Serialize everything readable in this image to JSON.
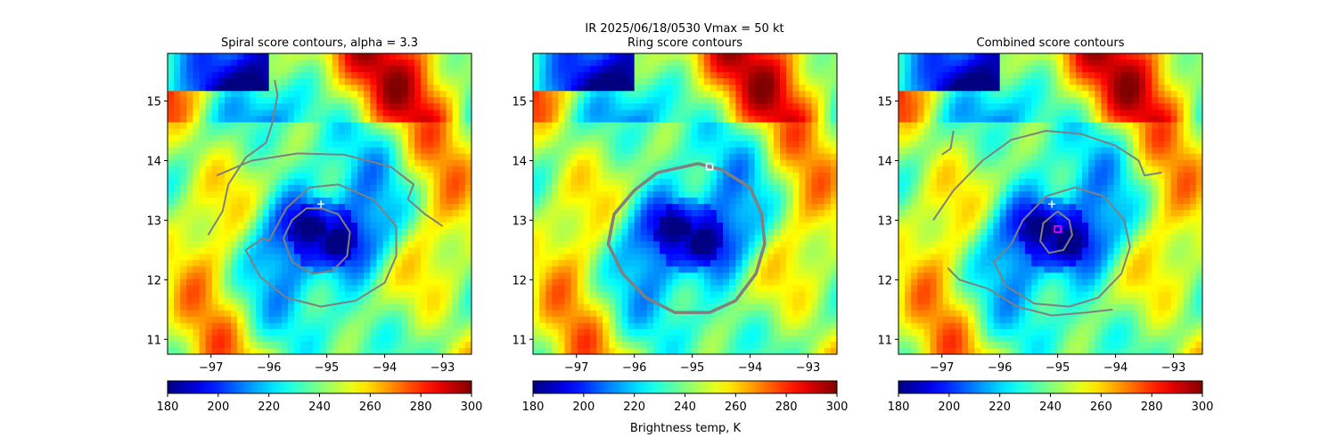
{
  "figure": {
    "suptitle": "IR  2025/06/18/0530    Vmax = 50 kt",
    "colorbar_label": "Brightness temp, K"
  },
  "chart_data": [
    {
      "type": "heatmap",
      "title": "Spiral score contours, alpha =  3.3",
      "xlim": [
        -97.75,
        -92.5
      ],
      "ylim": [
        10.75,
        15.8
      ],
      "xticks": [
        -97,
        -96,
        -95,
        -94,
        -93
      ],
      "yticks": [
        11,
        12,
        13,
        14,
        15
      ],
      "colorbar": {
        "colormap": "jet",
        "range": [
          180,
          300
        ],
        "ticks": [
          180,
          200,
          220,
          240,
          260,
          280,
          300
        ]
      },
      "contour_color": "#808080",
      "contours": [
        {
          "level": "outer",
          "points": [
            [
              -96.9,
              13.75
            ],
            [
              -96.3,
              14.0
            ],
            [
              -95.5,
              14.12
            ],
            [
              -94.7,
              14.1
            ],
            [
              -93.9,
              13.9
            ],
            [
              -93.5,
              13.6
            ],
            [
              -93.6,
              13.35
            ],
            [
              -93.3,
              13.1
            ],
            [
              -93.0,
              12.9
            ]
          ]
        },
        {
          "level": "outer-arm",
          "points": [
            [
              -97.05,
              12.75
            ],
            [
              -96.8,
              13.15
            ],
            [
              -96.7,
              13.6
            ],
            [
              -96.4,
              14.05
            ],
            [
              -96.05,
              14.3
            ],
            [
              -95.95,
              14.6
            ],
            [
              -95.85,
              15.1
            ],
            [
              -95.9,
              15.35
            ]
          ]
        },
        {
          "level": "middle",
          "points": [
            [
              -96.0,
              12.65
            ],
            [
              -95.7,
              13.2
            ],
            [
              -95.3,
              13.55
            ],
            [
              -94.8,
              13.6
            ],
            [
              -94.2,
              13.35
            ],
            [
              -93.8,
              12.9
            ],
            [
              -93.8,
              12.4
            ],
            [
              -94.0,
              11.95
            ],
            [
              -94.5,
              11.65
            ],
            [
              -95.1,
              11.55
            ],
            [
              -95.7,
              11.7
            ],
            [
              -96.15,
              12.05
            ],
            [
              -96.4,
              12.5
            ],
            [
              -96.1,
              12.7
            ],
            [
              -96.0,
              12.65
            ]
          ]
        },
        {
          "level": "inner",
          "points": [
            [
              -95.1,
              13.2
            ],
            [
              -94.8,
              13.1
            ],
            [
              -94.6,
              12.8
            ],
            [
              -94.65,
              12.4
            ],
            [
              -94.9,
              12.15
            ],
            [
              -95.25,
              12.1
            ],
            [
              -95.6,
              12.3
            ],
            [
              -95.75,
              12.7
            ],
            [
              -95.6,
              13.0
            ],
            [
              -95.35,
              13.2
            ],
            [
              -95.1,
              13.2
            ]
          ]
        }
      ],
      "markers": [
        {
          "kind": "plus",
          "lon": -95.1,
          "lat": 13.27,
          "color": "#ffffff"
        }
      ]
    },
    {
      "type": "heatmap",
      "title": "Ring score contours",
      "xlim": [
        -97.75,
        -92.5
      ],
      "ylim": [
        10.75,
        15.8
      ],
      "xticks": [
        -97,
        -96,
        -95,
        -94,
        -93
      ],
      "yticks": [
        11,
        12,
        13,
        14,
        15
      ],
      "colorbar": {
        "colormap": "jet",
        "range": [
          180,
          300
        ],
        "ticks": [
          180,
          200,
          220,
          240,
          260,
          280,
          300
        ]
      },
      "contour_color": "#808080",
      "contours": [
        {
          "level": "ring-region",
          "points": [
            [
              -95.6,
              13.8
            ],
            [
              -94.9,
              13.95
            ],
            [
              -94.5,
              13.85
            ],
            [
              -94.0,
              13.55
            ],
            [
              -93.8,
              13.1
            ],
            [
              -93.75,
              12.6
            ],
            [
              -93.9,
              12.1
            ],
            [
              -94.25,
              11.65
            ],
            [
              -94.7,
              11.45
            ],
            [
              -95.3,
              11.45
            ],
            [
              -95.8,
              11.7
            ],
            [
              -96.2,
              12.1
            ],
            [
              -96.45,
              12.6
            ],
            [
              -96.35,
              13.1
            ],
            [
              -96.0,
              13.5
            ],
            [
              -95.6,
              13.8
            ]
          ]
        }
      ],
      "markers": [
        {
          "kind": "square",
          "lon": -94.7,
          "lat": 13.9,
          "color": "#ffffff"
        }
      ]
    },
    {
      "type": "heatmap",
      "title": "Combined score contours",
      "xlim": [
        -97.75,
        -92.5
      ],
      "ylim": [
        10.75,
        15.8
      ],
      "xticks": [
        -97,
        -96,
        -95,
        -94,
        -93
      ],
      "yticks": [
        11,
        12,
        13,
        14,
        15
      ],
      "colorbar": {
        "colormap": "jet",
        "range": [
          180,
          300
        ],
        "ticks": [
          180,
          200,
          220,
          240,
          260,
          280,
          300
        ]
      },
      "contour_color": "#808080",
      "contours": [
        {
          "level": "outer",
          "points": [
            [
              -97.15,
              13.0
            ],
            [
              -96.8,
              13.5
            ],
            [
              -96.3,
              14.0
            ],
            [
              -95.8,
              14.35
            ],
            [
              -95.2,
              14.5
            ],
            [
              -94.6,
              14.45
            ],
            [
              -94.0,
              14.25
            ],
            [
              -93.6,
              14.0
            ],
            [
              -93.5,
              13.75
            ],
            [
              -93.2,
              13.8
            ]
          ]
        },
        {
          "level": "outer-arm",
          "points": [
            [
              -97.0,
              14.1
            ],
            [
              -96.85,
              14.2
            ],
            [
              -96.8,
              14.5
            ]
          ]
        },
        {
          "level": "middle",
          "points": [
            [
              -95.8,
              12.6
            ],
            [
              -95.6,
              13.0
            ],
            [
              -95.2,
              13.4
            ],
            [
              -94.7,
              13.55
            ],
            [
              -94.2,
              13.4
            ],
            [
              -93.85,
              13.0
            ],
            [
              -93.75,
              12.55
            ],
            [
              -93.9,
              12.1
            ],
            [
              -94.3,
              11.7
            ],
            [
              -94.8,
              11.55
            ],
            [
              -95.4,
              11.6
            ],
            [
              -95.9,
              11.9
            ],
            [
              -96.1,
              12.3
            ],
            [
              -95.8,
              12.6
            ]
          ]
        },
        {
          "level": "middle-arm",
          "points": [
            [
              -96.9,
              12.2
            ],
            [
              -96.7,
              12.0
            ],
            [
              -96.2,
              11.85
            ],
            [
              -95.7,
              11.55
            ],
            [
              -95.1,
              11.4
            ],
            [
              -94.5,
              11.45
            ],
            [
              -94.05,
              11.5
            ]
          ]
        },
        {
          "level": "inner",
          "points": [
            [
              -95.0,
              13.15
            ],
            [
              -94.8,
              13.0
            ],
            [
              -94.75,
              12.75
            ],
            [
              -94.9,
              12.5
            ],
            [
              -95.15,
              12.45
            ],
            [
              -95.3,
              12.65
            ],
            [
              -95.25,
              12.95
            ],
            [
              -95.0,
              13.15
            ]
          ]
        }
      ],
      "markers": [
        {
          "kind": "plus",
          "lon": -95.1,
          "lat": 13.27,
          "color": "#ffffff"
        },
        {
          "kind": "square",
          "lon": -95.0,
          "lat": 12.85,
          "color": "#ff00ff"
        }
      ]
    }
  ]
}
